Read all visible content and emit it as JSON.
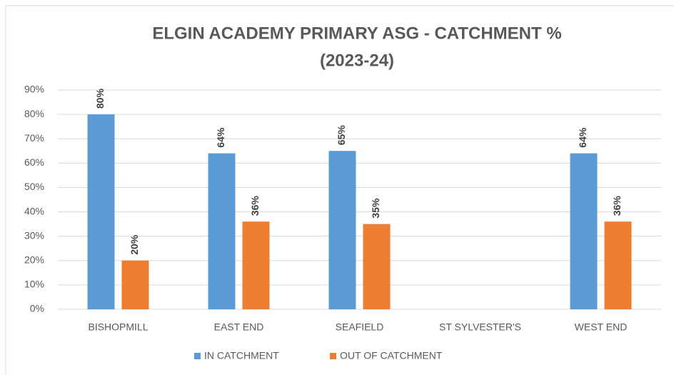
{
  "chart_data": {
    "type": "bar",
    "title": [
      "ELGIN ACADEMY PRIMARY ASG - CATCHMENT %",
      "(2023-24)"
    ],
    "categories": [
      "BISHOPMILL",
      "EAST END",
      "SEAFIELD",
      "ST SYLVESTER'S",
      "WEST END"
    ],
    "series": [
      {
        "name": "IN CATCHMENT",
        "color": "#5b9bd5",
        "values": [
          80,
          64,
          65,
          null,
          64
        ],
        "value_labels": [
          "80%",
          "64%",
          "65%",
          null,
          "64%"
        ]
      },
      {
        "name": "OUT OF CATCHMENT",
        "color": "#ed7d31",
        "values": [
          20,
          36,
          35,
          null,
          36
        ],
        "value_labels": [
          "20%",
          "36%",
          "35%",
          null,
          "36%"
        ]
      }
    ],
    "ylim": [
      0,
      90
    ],
    "yticks": [
      {
        "value": 0,
        "label": "0%"
      },
      {
        "value": 10,
        "label": "10%"
      },
      {
        "value": 20,
        "label": "20%"
      },
      {
        "value": 30,
        "label": "30%"
      },
      {
        "value": 40,
        "label": "40%"
      },
      {
        "value": 50,
        "label": "50%"
      },
      {
        "value": 60,
        "label": "60%"
      },
      {
        "value": 70,
        "label": "70%"
      },
      {
        "value": 80,
        "label": "80%"
      },
      {
        "value": 90,
        "label": "90%"
      }
    ],
    "grid": true,
    "legend": "bottom"
  }
}
